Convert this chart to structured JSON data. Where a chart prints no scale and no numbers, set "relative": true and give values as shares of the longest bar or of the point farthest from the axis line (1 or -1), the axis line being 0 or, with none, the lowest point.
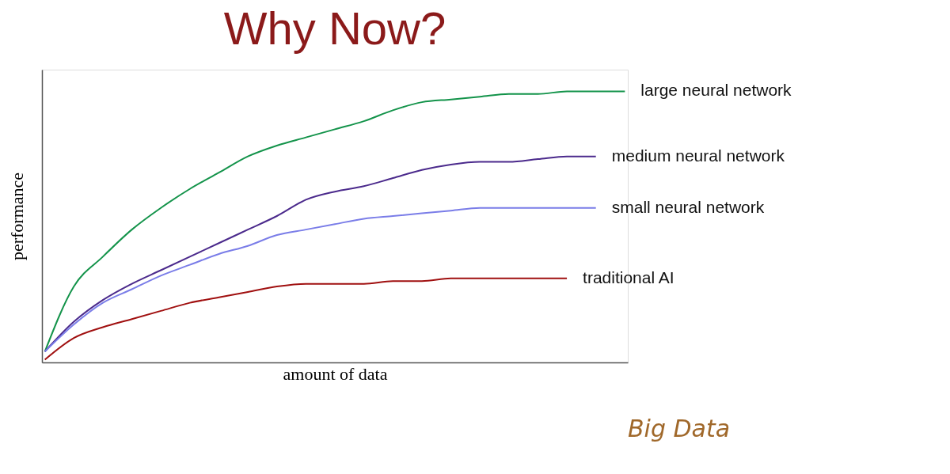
{
  "chart_data": {
    "type": "line",
    "title": "Why Now?",
    "xlabel": "amount of data",
    "ylabel": "performance",
    "relative": true,
    "legend": false,
    "grid": false,
    "tick_labels": false,
    "marker": "none",
    "line_style": "solid",
    "categories": [
      null,
      null,
      null,
      null,
      null,
      null,
      null,
      null,
      null,
      null,
      null,
      null,
      null,
      null,
      null,
      null,
      null,
      null,
      null,
      null,
      null
    ],
    "series": [
      {
        "name": "large neural network",
        "color": "#13934a",
        "values": [
          0.04,
          0.28,
          0.39,
          0.49,
          0.57,
          0.64,
          0.7,
          0.76,
          0.8,
          0.83,
          0.86,
          0.89,
          0.93,
          0.96,
          0.97,
          0.98,
          0.99,
          0.99,
          1.0,
          1.0,
          1.0
        ]
      },
      {
        "name": "medium neural network",
        "color": "#4b2a8c",
        "values": [
          0.04,
          0.15,
          0.23,
          0.29,
          0.34,
          0.39,
          0.44,
          0.49,
          0.54,
          0.6,
          0.63,
          0.65,
          0.68,
          0.71,
          0.73,
          0.74,
          0.74,
          0.75,
          0.76,
          0.76,
          null
        ]
      },
      {
        "name": "small neural network",
        "color": "#7a7de8",
        "values": [
          0.04,
          0.14,
          0.22,
          0.27,
          0.32,
          0.36,
          0.4,
          0.43,
          0.47,
          0.49,
          0.51,
          0.53,
          0.54,
          0.55,
          0.56,
          0.57,
          0.57,
          0.57,
          0.57,
          0.57,
          null
        ]
      },
      {
        "name": "traditional AI",
        "color": "#a01010",
        "values": [
          0.01,
          0.09,
          0.13,
          0.16,
          0.19,
          0.22,
          0.24,
          0.26,
          0.28,
          0.29,
          0.29,
          0.29,
          0.3,
          0.3,
          0.31,
          0.31,
          0.31,
          0.31,
          0.31,
          null,
          null
        ]
      }
    ],
    "annotations": [
      "Big Data"
    ]
  }
}
